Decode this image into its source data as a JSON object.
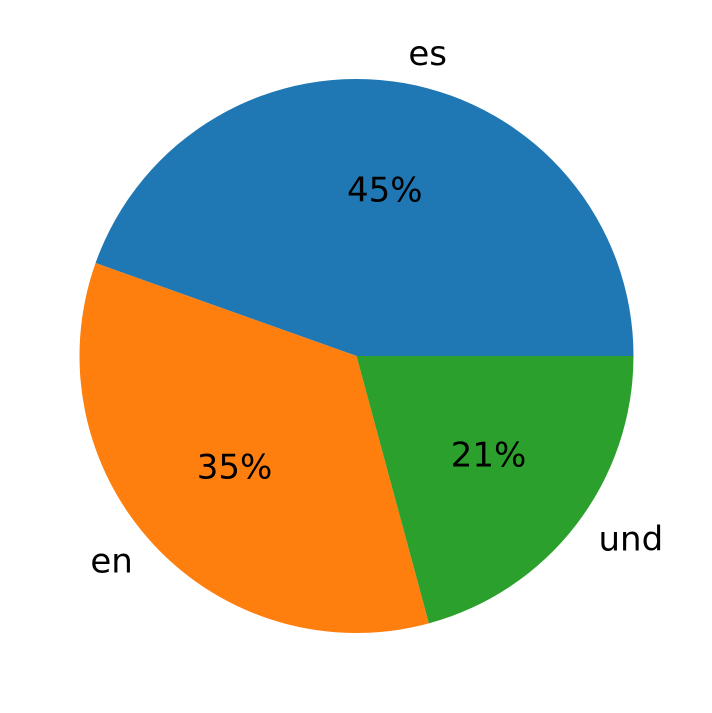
{
  "chart_data": {
    "type": "pie",
    "title": "",
    "categories": [
      "es",
      "en",
      "und"
    ],
    "values": [
      45,
      35,
      21
    ],
    "value_labels": [
      "45%",
      "35%",
      "21%"
    ],
    "colors": [
      "#1f77b4",
      "#ff7f0e",
      "#2ca02c"
    ],
    "start_angle_deg": 0,
    "direction": "counterclockwise",
    "legend": "none"
  }
}
